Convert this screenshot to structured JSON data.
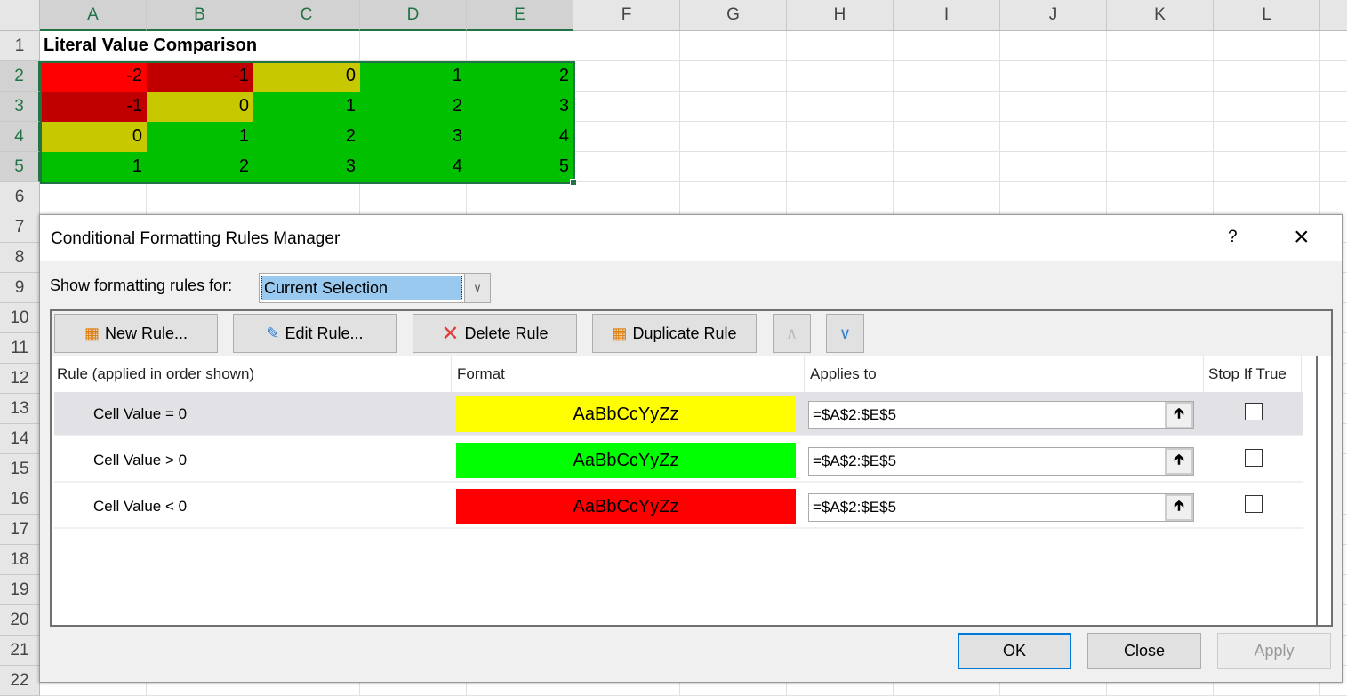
{
  "sheet": {
    "columns": [
      "A",
      "B",
      "C",
      "D",
      "E",
      "F",
      "G",
      "H",
      "I",
      "J",
      "K",
      "L"
    ],
    "rows": [
      "1",
      "2",
      "3",
      "4",
      "5",
      "6",
      "7",
      "8",
      "9",
      "10",
      "11",
      "12",
      "13",
      "14",
      "15",
      "16",
      "17",
      "18",
      "19",
      "20",
      "21",
      "22"
    ],
    "title": "Literal Value Comparison",
    "values": [
      [
        "-2",
        "-1",
        "0",
        "1",
        "2"
      ],
      [
        "-1",
        "0",
        "1",
        "2",
        "3"
      ],
      [
        "0",
        "1",
        "2",
        "3",
        "4"
      ],
      [
        "1",
        "2",
        "3",
        "4",
        "5"
      ]
    ],
    "fills": [
      [
        "#ff0000",
        "#c00000",
        "#c8c800",
        "#00c000",
        "#00c000"
      ],
      [
        "#c00000",
        "#c8c800",
        "#00c000",
        "#00c000",
        "#00c000"
      ],
      [
        "#c8c800",
        "#00c000",
        "#00c000",
        "#00c000",
        "#00c000"
      ],
      [
        "#00c000",
        "#00c000",
        "#00c000",
        "#00c000",
        "#00c000"
      ]
    ],
    "selection_color": "#217346"
  },
  "dialog": {
    "title": "Conditional Formatting Rules Manager",
    "help": "?",
    "close_icon": "×",
    "show_label": "Show formatting rules for:",
    "scope_value": "Current Selection",
    "toolbar": {
      "new_rule": "New Rule...",
      "edit_rule": "Edit Rule...",
      "delete_rule": "Delete Rule",
      "duplicate_rule": "Duplicate Rule"
    },
    "headers": {
      "rule": "Rule (applied in order shown)",
      "format": "Format",
      "applies": "Applies to",
      "stop": "Stop If True"
    },
    "rules": [
      {
        "rule": "Cell Value = 0",
        "preview": "AaBbCcYyZz",
        "color": "#ffff00",
        "applies": "=$A$2:$E$5",
        "stop": false
      },
      {
        "rule": "Cell Value > 0",
        "preview": "AaBbCcYyZz",
        "color": "#00ff00",
        "applies": "=$A$2:$E$5",
        "stop": false
      },
      {
        "rule": "Cell Value < 0",
        "preview": "AaBbCcYyZz",
        "color": "#ff0000",
        "applies": "=$A$2:$E$5",
        "stop": false
      }
    ],
    "ok": "OK",
    "close": "Close",
    "apply": "Apply"
  }
}
